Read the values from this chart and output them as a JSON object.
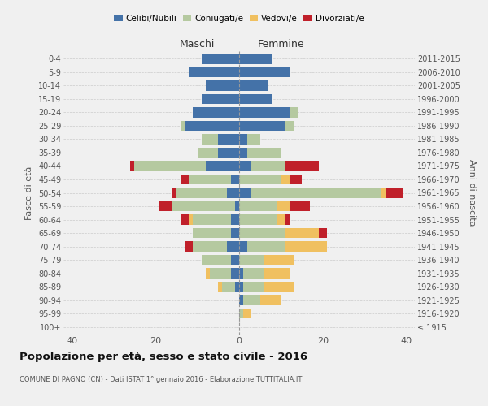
{
  "age_groups": [
    "100+",
    "95-99",
    "90-94",
    "85-89",
    "80-84",
    "75-79",
    "70-74",
    "65-69",
    "60-64",
    "55-59",
    "50-54",
    "45-49",
    "40-44",
    "35-39",
    "30-34",
    "25-29",
    "20-24",
    "15-19",
    "10-14",
    "5-9",
    "0-4"
  ],
  "birth_years": [
    "≤ 1915",
    "1916-1920",
    "1921-1925",
    "1926-1930",
    "1931-1935",
    "1936-1940",
    "1941-1945",
    "1946-1950",
    "1951-1955",
    "1956-1960",
    "1961-1965",
    "1966-1970",
    "1971-1975",
    "1976-1980",
    "1981-1985",
    "1986-1990",
    "1991-1995",
    "1996-2000",
    "2001-2005",
    "2006-2010",
    "2011-2015"
  ],
  "colors": {
    "celibe": "#4472a8",
    "coniugato": "#b5c9a0",
    "vedovo": "#f0c060",
    "divorziato": "#c0202a"
  },
  "maschi": {
    "celibe": [
      0,
      0,
      0,
      1,
      2,
      2,
      3,
      2,
      2,
      1,
      3,
      2,
      8,
      5,
      5,
      13,
      11,
      9,
      8,
      12,
      9
    ],
    "coniugato": [
      0,
      0,
      0,
      3,
      5,
      7,
      8,
      9,
      9,
      15,
      12,
      10,
      17,
      5,
      4,
      1,
      0,
      0,
      0,
      0,
      0
    ],
    "vedovo": [
      0,
      0,
      0,
      1,
      1,
      0,
      0,
      0,
      1,
      0,
      0,
      0,
      0,
      0,
      0,
      0,
      0,
      0,
      0,
      0,
      0
    ],
    "divorziato": [
      0,
      0,
      0,
      0,
      0,
      0,
      2,
      0,
      2,
      3,
      1,
      2,
      1,
      0,
      0,
      0,
      0,
      0,
      0,
      0,
      0
    ]
  },
  "femmine": {
    "nubile": [
      0,
      0,
      1,
      1,
      1,
      0,
      2,
      0,
      0,
      0,
      3,
      0,
      3,
      2,
      2,
      11,
      12,
      8,
      7,
      12,
      8
    ],
    "coniugata": [
      0,
      1,
      4,
      5,
      5,
      6,
      9,
      11,
      9,
      9,
      31,
      10,
      8,
      8,
      3,
      2,
      2,
      0,
      0,
      0,
      0
    ],
    "vedova": [
      0,
      2,
      5,
      7,
      6,
      7,
      10,
      8,
      2,
      3,
      1,
      2,
      0,
      0,
      0,
      0,
      0,
      0,
      0,
      0,
      0
    ],
    "divorziata": [
      0,
      0,
      0,
      0,
      0,
      0,
      0,
      2,
      1,
      5,
      4,
      3,
      8,
      0,
      0,
      0,
      0,
      0,
      0,
      0,
      0
    ]
  },
  "xlim": [
    -42,
    42
  ],
  "xticks": [
    -40,
    -20,
    0,
    20,
    40
  ],
  "xticklabels": [
    "40",
    "20",
    "0",
    "20",
    "40"
  ],
  "title": "Popolazione per età, sesso e stato civile - 2016",
  "subtitle": "COMUNE DI PAGNO (CN) - Dati ISTAT 1° gennaio 2016 - Elaborazione TUTTITALIA.IT",
  "ylabel_left": "Fasce di età",
  "ylabel_right": "Anni di nascita",
  "legend_labels": [
    "Celibi/Nubili",
    "Coniugati/e",
    "Vedovi/e",
    "Divorziati/e"
  ],
  "background_color": "#f0f0f0",
  "grid_color": "#cccccc"
}
